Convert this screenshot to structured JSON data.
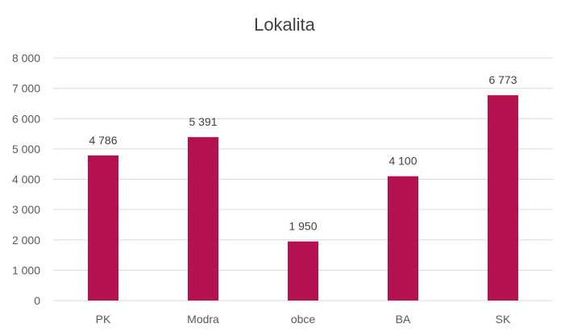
{
  "chart_data": {
    "type": "bar",
    "title": "Lokalita",
    "categories": [
      "PK",
      "Modra",
      "obce",
      "BA",
      "SK"
    ],
    "values": [
      4786,
      5391,
      1950,
      4100,
      6773
    ],
    "value_labels": [
      "4 786",
      "5 391",
      "1 950",
      "4 100",
      "6 773"
    ],
    "ylim": [
      0,
      8000
    ],
    "yticks": [
      0,
      1000,
      2000,
      3000,
      4000,
      5000,
      6000,
      7000,
      8000
    ],
    "ytick_labels": [
      "0",
      "1 000",
      "2 000",
      "3 000",
      "4 000",
      "5 000",
      "6 000",
      "7 000",
      "8 000"
    ],
    "grid": true,
    "bar_color": "#B5104F",
    "grid_color": "#D9D9D9",
    "text_color": "#595959",
    "xlabel": "",
    "ylabel": ""
  }
}
